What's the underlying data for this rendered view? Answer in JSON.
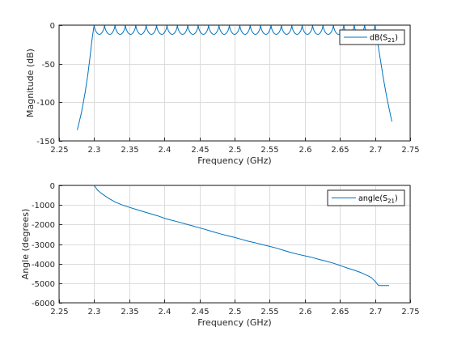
{
  "chart_data": [
    {
      "type": "line",
      "title": "",
      "xlabel": "Frequency (GHz)",
      "ylabel": "Magnitude (dB)",
      "xlim": [
        2.25,
        2.75
      ],
      "ylim": [
        -150,
        0
      ],
      "xticks": [
        2.25,
        2.3,
        2.35,
        2.4,
        2.45,
        2.5,
        2.55,
        2.6,
        2.65,
        2.7,
        2.75
      ],
      "xtick_labels": [
        "2.25",
        "2.3",
        "2.35",
        "2.4",
        "2.45",
        "2.5",
        "2.55",
        "2.6",
        "2.65",
        "2.7",
        "2.75"
      ],
      "yticks": [
        -150,
        -100,
        -50,
        0
      ],
      "ytick_labels": [
        "-150",
        "-100",
        "-50",
        "0"
      ],
      "grid": true,
      "legend_position": "top-right",
      "color": "#0072BD",
      "series": [
        {
          "name": "dB(S21)",
          "name_base": "dB(S",
          "name_sub": "21",
          "name_end": ")",
          "x": [
            2.276,
            2.282,
            2.287,
            2.291,
            2.294,
            2.296,
            2.2975,
            2.2988,
            2.2995,
            2.3
          ],
          "y": [
            -136,
            -113,
            -88,
            -64,
            -42,
            -26,
            -15,
            -7,
            -3,
            0
          ],
          "passband": {
            "x_start": 2.3,
            "x_end": 2.7,
            "ripple_periods": 27,
            "ripple_min": -12,
            "ripple_max": 0
          },
          "x_upper": [
            2.7,
            2.7005,
            2.7012,
            2.7025,
            2.7045,
            2.7075,
            2.7115,
            2.716,
            2.72,
            2.724
          ],
          "y_upper": [
            0,
            -3,
            -7,
            -15,
            -27,
            -44,
            -67,
            -90,
            -108,
            -125
          ]
        }
      ]
    },
    {
      "type": "line",
      "title": "",
      "xlabel": "Frequency (GHz)",
      "ylabel": "Angle (degrees)",
      "xlim": [
        2.25,
        2.75
      ],
      "ylim": [
        -6000,
        0
      ],
      "xticks": [
        2.25,
        2.3,
        2.35,
        2.4,
        2.45,
        2.5,
        2.55,
        2.6,
        2.65,
        2.7,
        2.75
      ],
      "xtick_labels": [
        "2.25",
        "2.3",
        "2.35",
        "2.4",
        "2.45",
        "2.5",
        "2.55",
        "2.6",
        "2.65",
        "2.7",
        "2.75"
      ],
      "yticks": [
        -6000,
        -5000,
        -4000,
        -3000,
        -2000,
        -1000,
        0
      ],
      "ytick_labels": [
        "-6000",
        "-5000",
        "-4000",
        "-3000",
        "-2000",
        "-1000",
        "0"
      ],
      "grid": true,
      "legend_position": "top-right",
      "color": "#0072BD",
      "series": [
        {
          "name": "angle(S21)",
          "name_base": "angle(S",
          "name_sub": "21",
          "name_end": ")",
          "x": [
            2.275,
            2.3,
            2.305,
            2.31,
            2.32,
            2.33,
            2.34,
            2.35,
            2.36,
            2.37,
            2.38,
            2.39,
            2.4,
            2.41,
            2.42,
            2.43,
            2.44,
            2.45,
            2.46,
            2.47,
            2.48,
            2.49,
            2.5,
            2.51,
            2.52,
            2.53,
            2.54,
            2.55,
            2.56,
            2.57,
            2.58,
            2.59,
            2.6,
            2.61,
            2.62,
            2.63,
            2.64,
            2.65,
            2.66,
            2.67,
            2.68,
            2.69,
            2.695,
            2.7,
            2.705,
            2.72
          ],
          "y": [
            0,
            0,
            -250,
            -400,
            -650,
            -850,
            -1000,
            -1120,
            -1230,
            -1340,
            -1450,
            -1550,
            -1680,
            -1780,
            -1870,
            -1970,
            -2070,
            -2170,
            -2270,
            -2380,
            -2480,
            -2570,
            -2660,
            -2760,
            -2860,
            -2940,
            -3030,
            -3120,
            -3210,
            -3320,
            -3430,
            -3520,
            -3600,
            -3680,
            -3780,
            -3870,
            -3970,
            -4090,
            -4220,
            -4330,
            -4460,
            -4620,
            -4720,
            -4900,
            -5120,
            -5120
          ]
        }
      ]
    }
  ]
}
